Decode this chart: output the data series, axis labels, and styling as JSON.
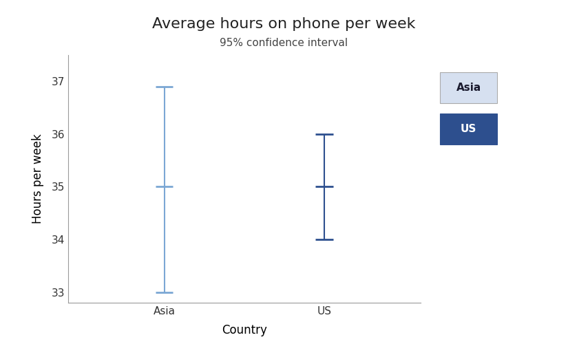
{
  "title": "Average hours on phone per week",
  "subtitle": "95% confidence interval",
  "xlabel": "Country",
  "ylabel": "Hours per week",
  "categories": [
    "Asia",
    "US"
  ],
  "means": [
    35,
    35
  ],
  "ci_lower": [
    33,
    34
  ],
  "ci_upper": [
    36.9,
    36
  ],
  "asia_color": "#7ba7d4",
  "us_color": "#2d4f8e",
  "legend_asia_bg": "#d6e0f0",
  "legend_asia_text": "#1a1a2e",
  "legend_us_bg": "#2d4f8e",
  "legend_us_text": "#ffffff",
  "background_color": "#ffffff",
  "ylim": [
    32.8,
    37.5
  ],
  "yticks": [
    33,
    34,
    35,
    36,
    37
  ],
  "capsize": 0.055,
  "linewidth": 1.5,
  "cap_linewidth": 2.0,
  "title_fontsize": 16,
  "subtitle_fontsize": 11,
  "axis_label_fontsize": 12,
  "tick_fontsize": 11
}
